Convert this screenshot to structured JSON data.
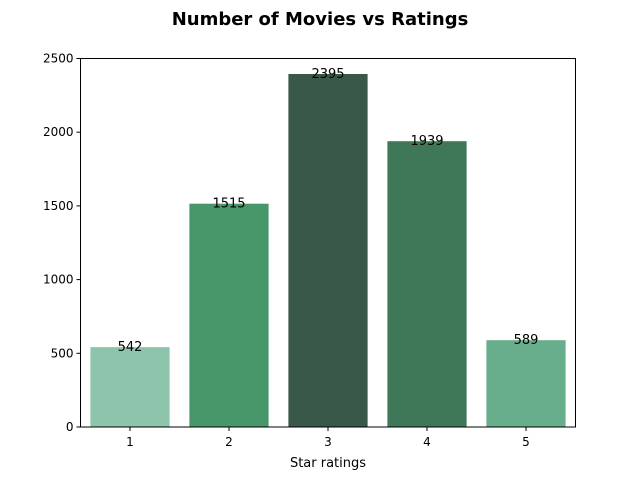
{
  "chart_data": {
    "type": "bar",
    "title": "Number of Movies vs Ratings",
    "xlabel": "Star ratings",
    "ylabel": "",
    "categories": [
      "1",
      "2",
      "3",
      "4",
      "5"
    ],
    "values": [
      542,
      1515,
      2395,
      1939,
      589
    ],
    "data_labels": [
      "542",
      "1515",
      "2395",
      "1939",
      "589"
    ],
    "ylim": [
      0,
      2500
    ],
    "y_ticks": [
      0,
      500,
      1000,
      1500,
      2000,
      2500
    ],
    "y_tick_labels": [
      "0",
      "500",
      "1000",
      "1500",
      "2000",
      "2500"
    ],
    "colors": [
      "#8dc4ab",
      "#48976a",
      "#3a5849",
      "#3e7858",
      "#68ad8c"
    ],
    "grid": false,
    "legend": "none"
  }
}
